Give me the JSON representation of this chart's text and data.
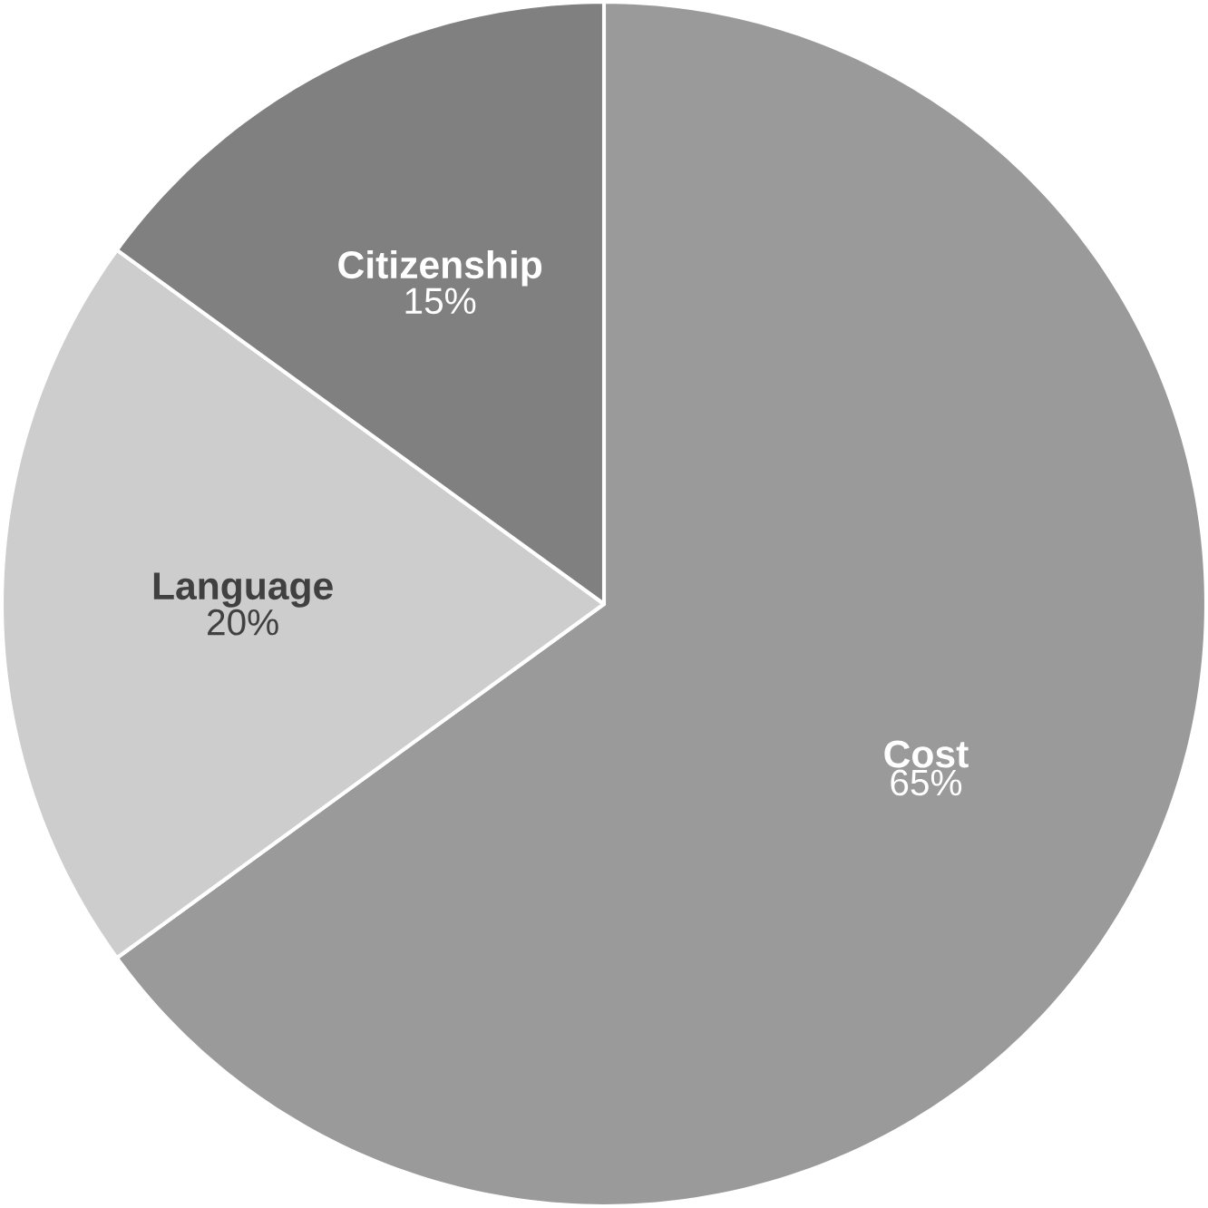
{
  "chart_data": {
    "type": "pie",
    "categories": [
      "Cost",
      "Language",
      "Citizenship"
    ],
    "values": [
      65,
      20,
      15
    ],
    "value_labels": [
      "65%",
      "20%",
      "15%"
    ],
    "colors": [
      "#9a9a9a",
      "#cdcdcd",
      "#808080"
    ]
  }
}
